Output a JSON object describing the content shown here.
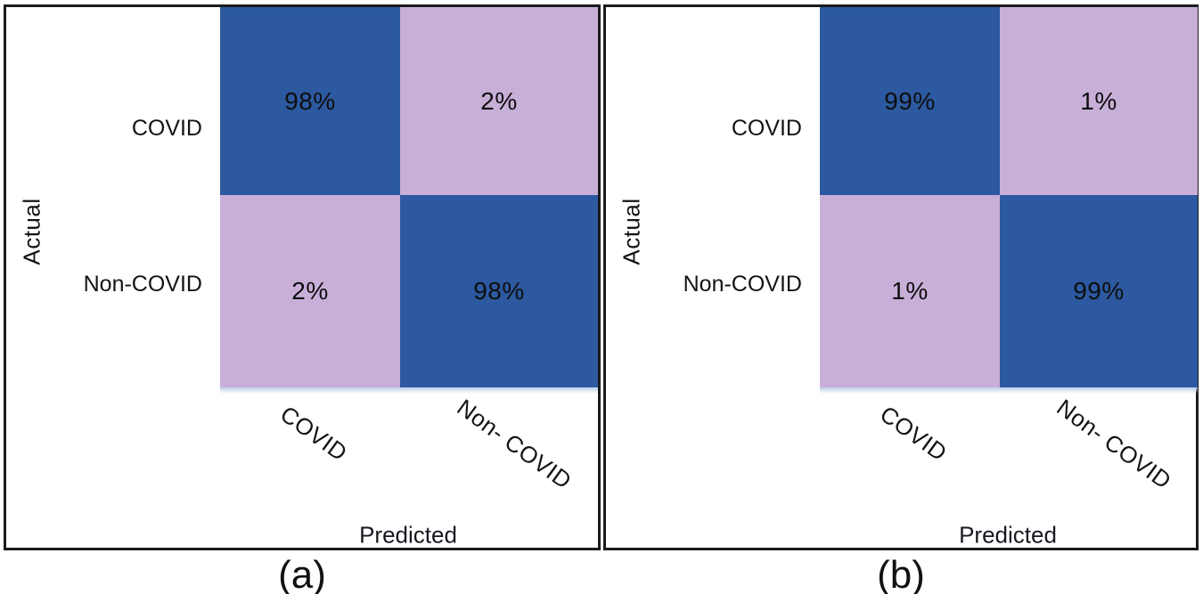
{
  "figure": {
    "colors": {
      "diagonal_cell": "#2C59A0",
      "off_diagonal_cell": "#C8AFD8",
      "panel_border": "#1b1b1b",
      "text": "#141414"
    },
    "panels": [
      {
        "caption": "(a)",
        "y_axis_title": "Actual",
        "x_axis_title": "Predicted",
        "row_labels": [
          "COVID",
          "Non-COVID"
        ],
        "col_labels": [
          "COVID",
          "Non- COVID"
        ],
        "cell_labels": [
          "98%",
          "2%",
          "2%",
          "98%"
        ]
      },
      {
        "caption": "(b)",
        "y_axis_title": "Actual",
        "x_axis_title": "Predicted",
        "row_labels": [
          "COVID",
          "Non-COVID"
        ],
        "col_labels": [
          "COVID",
          "Non- COVID"
        ],
        "cell_labels": [
          "99%",
          "1%",
          "1%",
          "99%"
        ]
      }
    ]
  },
  "chart_data": [
    {
      "type": "heatmap",
      "title": "(a)",
      "xlabel": "Predicted",
      "ylabel": "Actual",
      "x_categories": [
        "COVID",
        "Non- COVID"
      ],
      "y_categories": [
        "COVID",
        "Non-COVID"
      ],
      "values": [
        [
          98,
          2
        ],
        [
          2,
          98
        ]
      ],
      "unit": "%",
      "cell_colors": [
        [
          "#2C59A0",
          "#C8AFD8"
        ],
        [
          "#C8AFD8",
          "#2C59A0"
        ]
      ],
      "legend": "none",
      "grid": false
    },
    {
      "type": "heatmap",
      "title": "(b)",
      "xlabel": "Predicted",
      "ylabel": "Actual",
      "x_categories": [
        "COVID",
        "Non- COVID"
      ],
      "y_categories": [
        "COVID",
        "Non-COVID"
      ],
      "values": [
        [
          99,
          1
        ],
        [
          1,
          99
        ]
      ],
      "unit": "%",
      "cell_colors": [
        [
          "#2C59A0",
          "#C8AFD8"
        ],
        [
          "#C8AFD8",
          "#2C59A0"
        ]
      ],
      "legend": "none",
      "grid": false
    }
  ]
}
